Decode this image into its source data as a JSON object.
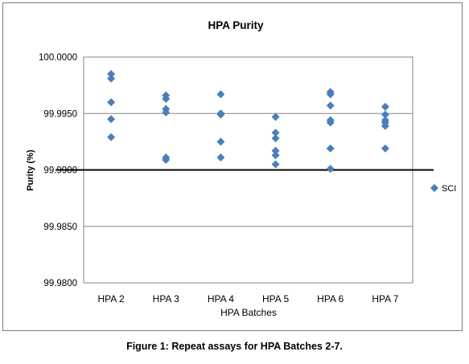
{
  "chart_data": {
    "type": "scatter",
    "title": "HPA Purity",
    "xlabel": "HPA Batches",
    "ylabel": "Purity (%)",
    "categories": [
      "HPA 2",
      "HPA 3",
      "HPA 4",
      "HPA 5",
      "HPA 6",
      "HPA 7"
    ],
    "y_ticks": [
      "99.9800",
      "99.9850",
      "99.9900",
      "99.9950",
      "100.0000"
    ],
    "ylim": [
      99.98,
      100.0
    ],
    "grid": true,
    "legend_position": "right",
    "marker": "diamond",
    "marker_color": "#4a7ebb",
    "reference_line": {
      "y": 99.99,
      "color": "#000000"
    },
    "series": [
      {
        "name": "SCI",
        "points": [
          {
            "x": "HPA 2",
            "y": 99.9985
          },
          {
            "x": "HPA 2",
            "y": 99.9981
          },
          {
            "x": "HPA 2",
            "y": 99.996
          },
          {
            "x": "HPA 2",
            "y": 99.9945
          },
          {
            "x": "HPA 2",
            "y": 99.9929
          },
          {
            "x": "HPA 3",
            "y": 99.9966
          },
          {
            "x": "HPA 3",
            "y": 99.9963
          },
          {
            "x": "HPA 3",
            "y": 99.9954
          },
          {
            "x": "HPA 3",
            "y": 99.9951
          },
          {
            "x": "HPA 3",
            "y": 99.9911
          },
          {
            "x": "HPA 3",
            "y": 99.9909
          },
          {
            "x": "HPA 4",
            "y": 99.9967
          },
          {
            "x": "HPA 4",
            "y": 99.995
          },
          {
            "x": "HPA 4",
            "y": 99.9949
          },
          {
            "x": "HPA 4",
            "y": 99.9925
          },
          {
            "x": "HPA 4",
            "y": 99.9911
          },
          {
            "x": "HPA 5",
            "y": 99.9947
          },
          {
            "x": "HPA 5",
            "y": 99.9933
          },
          {
            "x": "HPA 5",
            "y": 99.9928
          },
          {
            "x": "HPA 5",
            "y": 99.9917
          },
          {
            "x": "HPA 5",
            "y": 99.9913
          },
          {
            "x": "HPA 5",
            "y": 99.9905
          },
          {
            "x": "HPA 6",
            "y": 99.9969
          },
          {
            "x": "HPA 6",
            "y": 99.9967
          },
          {
            "x": "HPA 6",
            "y": 99.9957
          },
          {
            "x": "HPA 6",
            "y": 99.9944
          },
          {
            "x": "HPA 6",
            "y": 99.9942
          },
          {
            "x": "HPA 6",
            "y": 99.9919
          },
          {
            "x": "HPA 6",
            "y": 99.9901
          },
          {
            "x": "HPA 7",
            "y": 99.9956
          },
          {
            "x": "HPA 7",
            "y": 99.9949
          },
          {
            "x": "HPA 7",
            "y": 99.9944
          },
          {
            "x": "HPA 7",
            "y": 99.9942
          },
          {
            "x": "HPA 7",
            "y": 99.9939
          },
          {
            "x": "HPA 7",
            "y": 99.9919
          }
        ]
      }
    ]
  },
  "caption": "Figure 1: Repeat assays for HPA Batches 2-7."
}
